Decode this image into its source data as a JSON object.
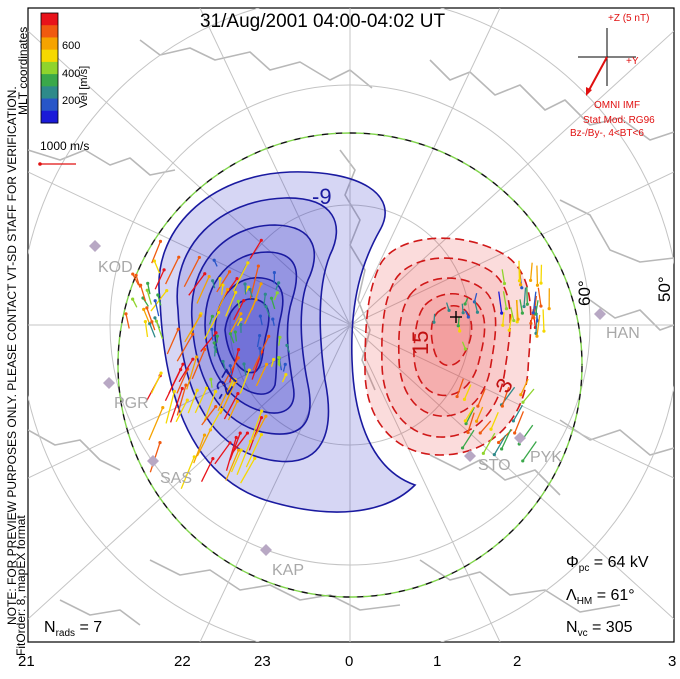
{
  "title": "31/Aug/2001 04:00-04:02 UT",
  "coords": "MLT coordinates",
  "note": "NOTE: FOR PREVIEW PURPOSES ONLY. PLEASE CONTACT VT-SD STAFF FOR VERIFICATION.",
  "fit": "FitOrder: 8, mapEX format",
  "colorbar": {
    "label": "Vel [m/s]",
    "ticks": [
      "600",
      "400",
      "200"
    ],
    "colors": [
      "#e8131a",
      "#f05a10",
      "#f5a300",
      "#f5d800",
      "#8fd42c",
      "#3aa84a",
      "#2e8a8a",
      "#2856c8",
      "#1a1ad8"
    ]
  },
  "ref_vector": "1000 m/s",
  "imf": {
    "z_label": "+Z (5 nT)",
    "y_label": "+Y",
    "source": "OMNI IMF",
    "stat_mod": "Stat Mod: RG96",
    "bins": "Bz-/By-, 4<BT<6"
  },
  "contour_labels": [
    "-9",
    "-27",
    "15",
    "3"
  ],
  "lat_labels": [
    "60°",
    "50°"
  ],
  "stations": [
    "KOD",
    "PGR",
    "SAS",
    "KAP",
    "HAN",
    "STO",
    "PYK"
  ],
  "mlt_ticks": [
    "21",
    "22",
    "23",
    "0",
    "1",
    "2",
    "3"
  ],
  "stats": {
    "phi_sym": "Φ",
    "phi_sub": "pc",
    "phi_val": "= 64 kV",
    "lambda_sym": "Λ",
    "lambda_sub": "HM",
    "lambda_val": "= 61°",
    "nvc_sym": "N",
    "nvc_sub": "vc",
    "nvc_val": "= 305",
    "nrads_sym": "N",
    "nrads_sub": "rads",
    "nrads_val": "= 7"
  },
  "colors": {
    "neg_fill": "#3232c8",
    "pos_fill": "#e83c3c",
    "neg_line": "#1a1aa0",
    "pos_line": "#d01818",
    "land": "#b4b4b4",
    "boundary": "#111111",
    "boundary_dash": "#7fd44a"
  }
}
